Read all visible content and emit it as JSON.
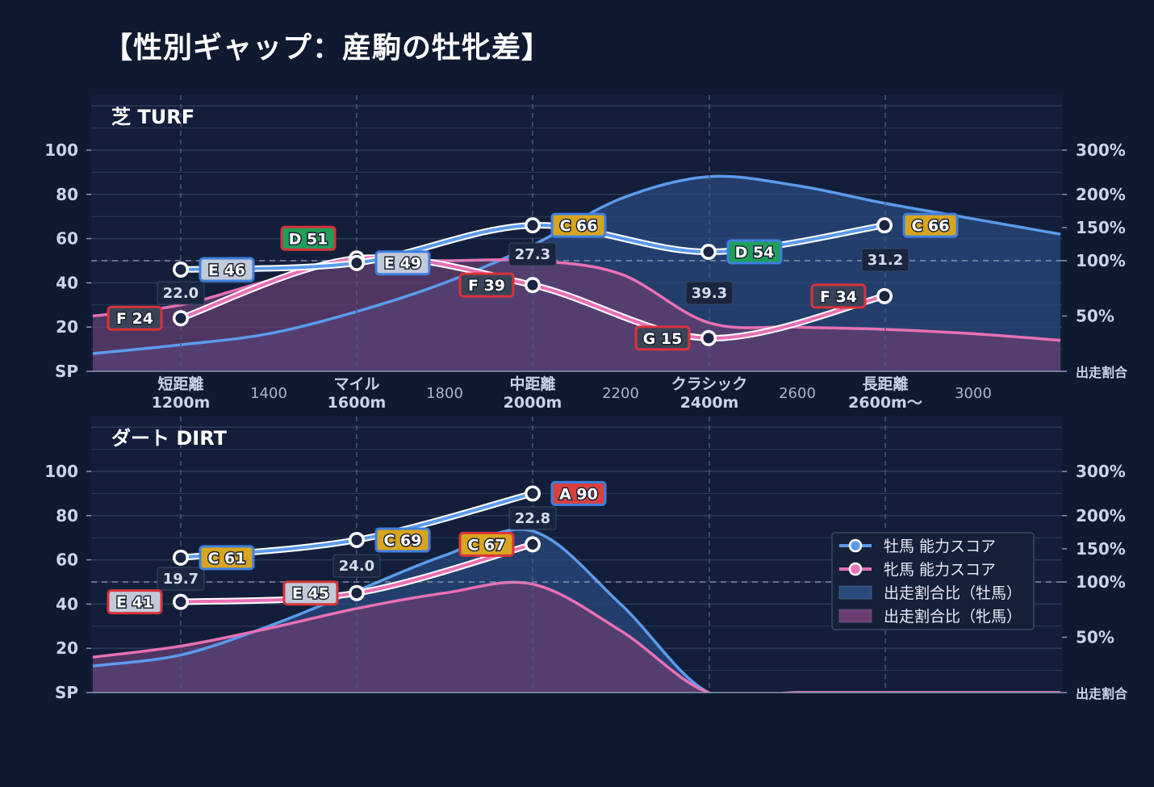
{
  "title": "【性別ギャップ：産駒の牡牝差】",
  "chart_data": {
    "type": "line",
    "x_categories": [
      {
        "name": "短距離",
        "sub": "1200m"
      },
      {
        "name": "マイル",
        "sub": "1600m"
      },
      {
        "name": "中距離",
        "sub": "2000m"
      },
      {
        "name": "クラシック",
        "sub": "2400m"
      },
      {
        "name": "長距離",
        "sub": "2600m〜"
      }
    ],
    "x_minor_labels": [
      "1400",
      "1800",
      "2200",
      "2600",
      "3000"
    ],
    "y_left_ticks": [
      "SP",
      "20",
      "40",
      "60",
      "80",
      "100"
    ],
    "y_right_ticks": [
      "出走割合",
      "50%",
      "100%",
      "150%",
      "200%",
      "300%"
    ],
    "colors": {
      "male": "#5b9bec",
      "female": "#e870b4",
      "male_area": "#2a4a7e",
      "female_area": "#6a3e72",
      "grade_A": "#d8403e",
      "grade_C": "#d8a520",
      "grade_D": "#1f9f5a",
      "grade_E": "#c2c9d8",
      "grade_F": "#3a4458",
      "grade_G": "#3a4458"
    },
    "legend": [
      {
        "label": "牡馬 能力スコア",
        "kind": "male-line"
      },
      {
        "label": "牝馬 能力スコア",
        "kind": "female-line"
      },
      {
        "label": "出走割合比（牡馬）",
        "kind": "male-area"
      },
      {
        "label": "出走割合比（牝馬）",
        "kind": "female-area"
      }
    ],
    "panels": [
      {
        "title": "芝 TURF",
        "male": [
          {
            "x": 0,
            "score": 46,
            "grade": "E 46"
          },
          {
            "x": 1,
            "score": 49,
            "grade": "E 49"
          },
          {
            "x": 2,
            "score": 66,
            "grade": "C 66"
          },
          {
            "x": 3,
            "score": 54,
            "grade": "D 54"
          },
          {
            "x": 4,
            "score": 66,
            "grade": "C 66"
          }
        ],
        "female": [
          {
            "x": 0,
            "score": 24,
            "grade": "F 24"
          },
          {
            "x": 1,
            "score": 51,
            "grade": "D 51"
          },
          {
            "x": 2,
            "score": 39,
            "grade": "F 39"
          },
          {
            "x": 3,
            "score": 15,
            "grade": "G 15"
          },
          {
            "x": 4,
            "score": 34,
            "grade": "F 34"
          }
        ],
        "ratio_labels": [
          "22.0",
          "",
          "27.3",
          "39.3",
          "31.2"
        ],
        "male_area": [
          [
            -0.5,
            8
          ],
          [
            0,
            12
          ],
          [
            0.5,
            17
          ],
          [
            1,
            27
          ],
          [
            1.5,
            40
          ],
          [
            2,
            57
          ],
          [
            2.5,
            78
          ],
          [
            3,
            88
          ],
          [
            3.5,
            84
          ],
          [
            4,
            76
          ],
          [
            4.5,
            69
          ],
          [
            5.0,
            62
          ]
        ],
        "female_area": [
          [
            -0.5,
            25
          ],
          [
            0,
            30
          ],
          [
            0.5,
            41
          ],
          [
            1,
            50
          ],
          [
            1.5,
            50
          ],
          [
            2,
            50
          ],
          [
            2.5,
            44
          ],
          [
            3,
            22
          ],
          [
            3.5,
            20
          ],
          [
            4,
            19
          ],
          [
            4.5,
            17
          ],
          [
            5.0,
            14
          ]
        ]
      },
      {
        "title": "ダート DIRT",
        "male": [
          {
            "x": 0,
            "score": 61,
            "grade": "C 61"
          },
          {
            "x": 1,
            "score": 69,
            "grade": "C 69"
          },
          {
            "x": 2,
            "score": 90,
            "grade": "A 90"
          }
        ],
        "female": [
          {
            "x": 0,
            "score": 41,
            "grade": "E 41"
          },
          {
            "x": 1,
            "score": 45,
            "grade": "E 45"
          },
          {
            "x": 2,
            "score": 67,
            "grade": "C 67"
          }
        ],
        "ratio_labels": [
          "19.7",
          "24.0",
          "22.8",
          "",
          ""
        ],
        "male_area": [
          [
            -0.5,
            12
          ],
          [
            0,
            17
          ],
          [
            0.5,
            30
          ],
          [
            1,
            46
          ],
          [
            1.5,
            62
          ],
          [
            2,
            73
          ],
          [
            2.5,
            40
          ],
          [
            3,
            0
          ],
          [
            3.5,
            0
          ],
          [
            4,
            0
          ],
          [
            4.5,
            0
          ],
          [
            5.0,
            0
          ]
        ],
        "female_area": [
          [
            -0.5,
            16
          ],
          [
            0,
            21
          ],
          [
            0.5,
            29
          ],
          [
            1,
            38
          ],
          [
            1.5,
            45
          ],
          [
            2,
            49
          ],
          [
            2.5,
            28
          ],
          [
            3,
            0
          ],
          [
            3.5,
            0
          ],
          [
            4,
            0
          ],
          [
            4.5,
            0
          ],
          [
            5.0,
            0
          ]
        ]
      }
    ]
  }
}
